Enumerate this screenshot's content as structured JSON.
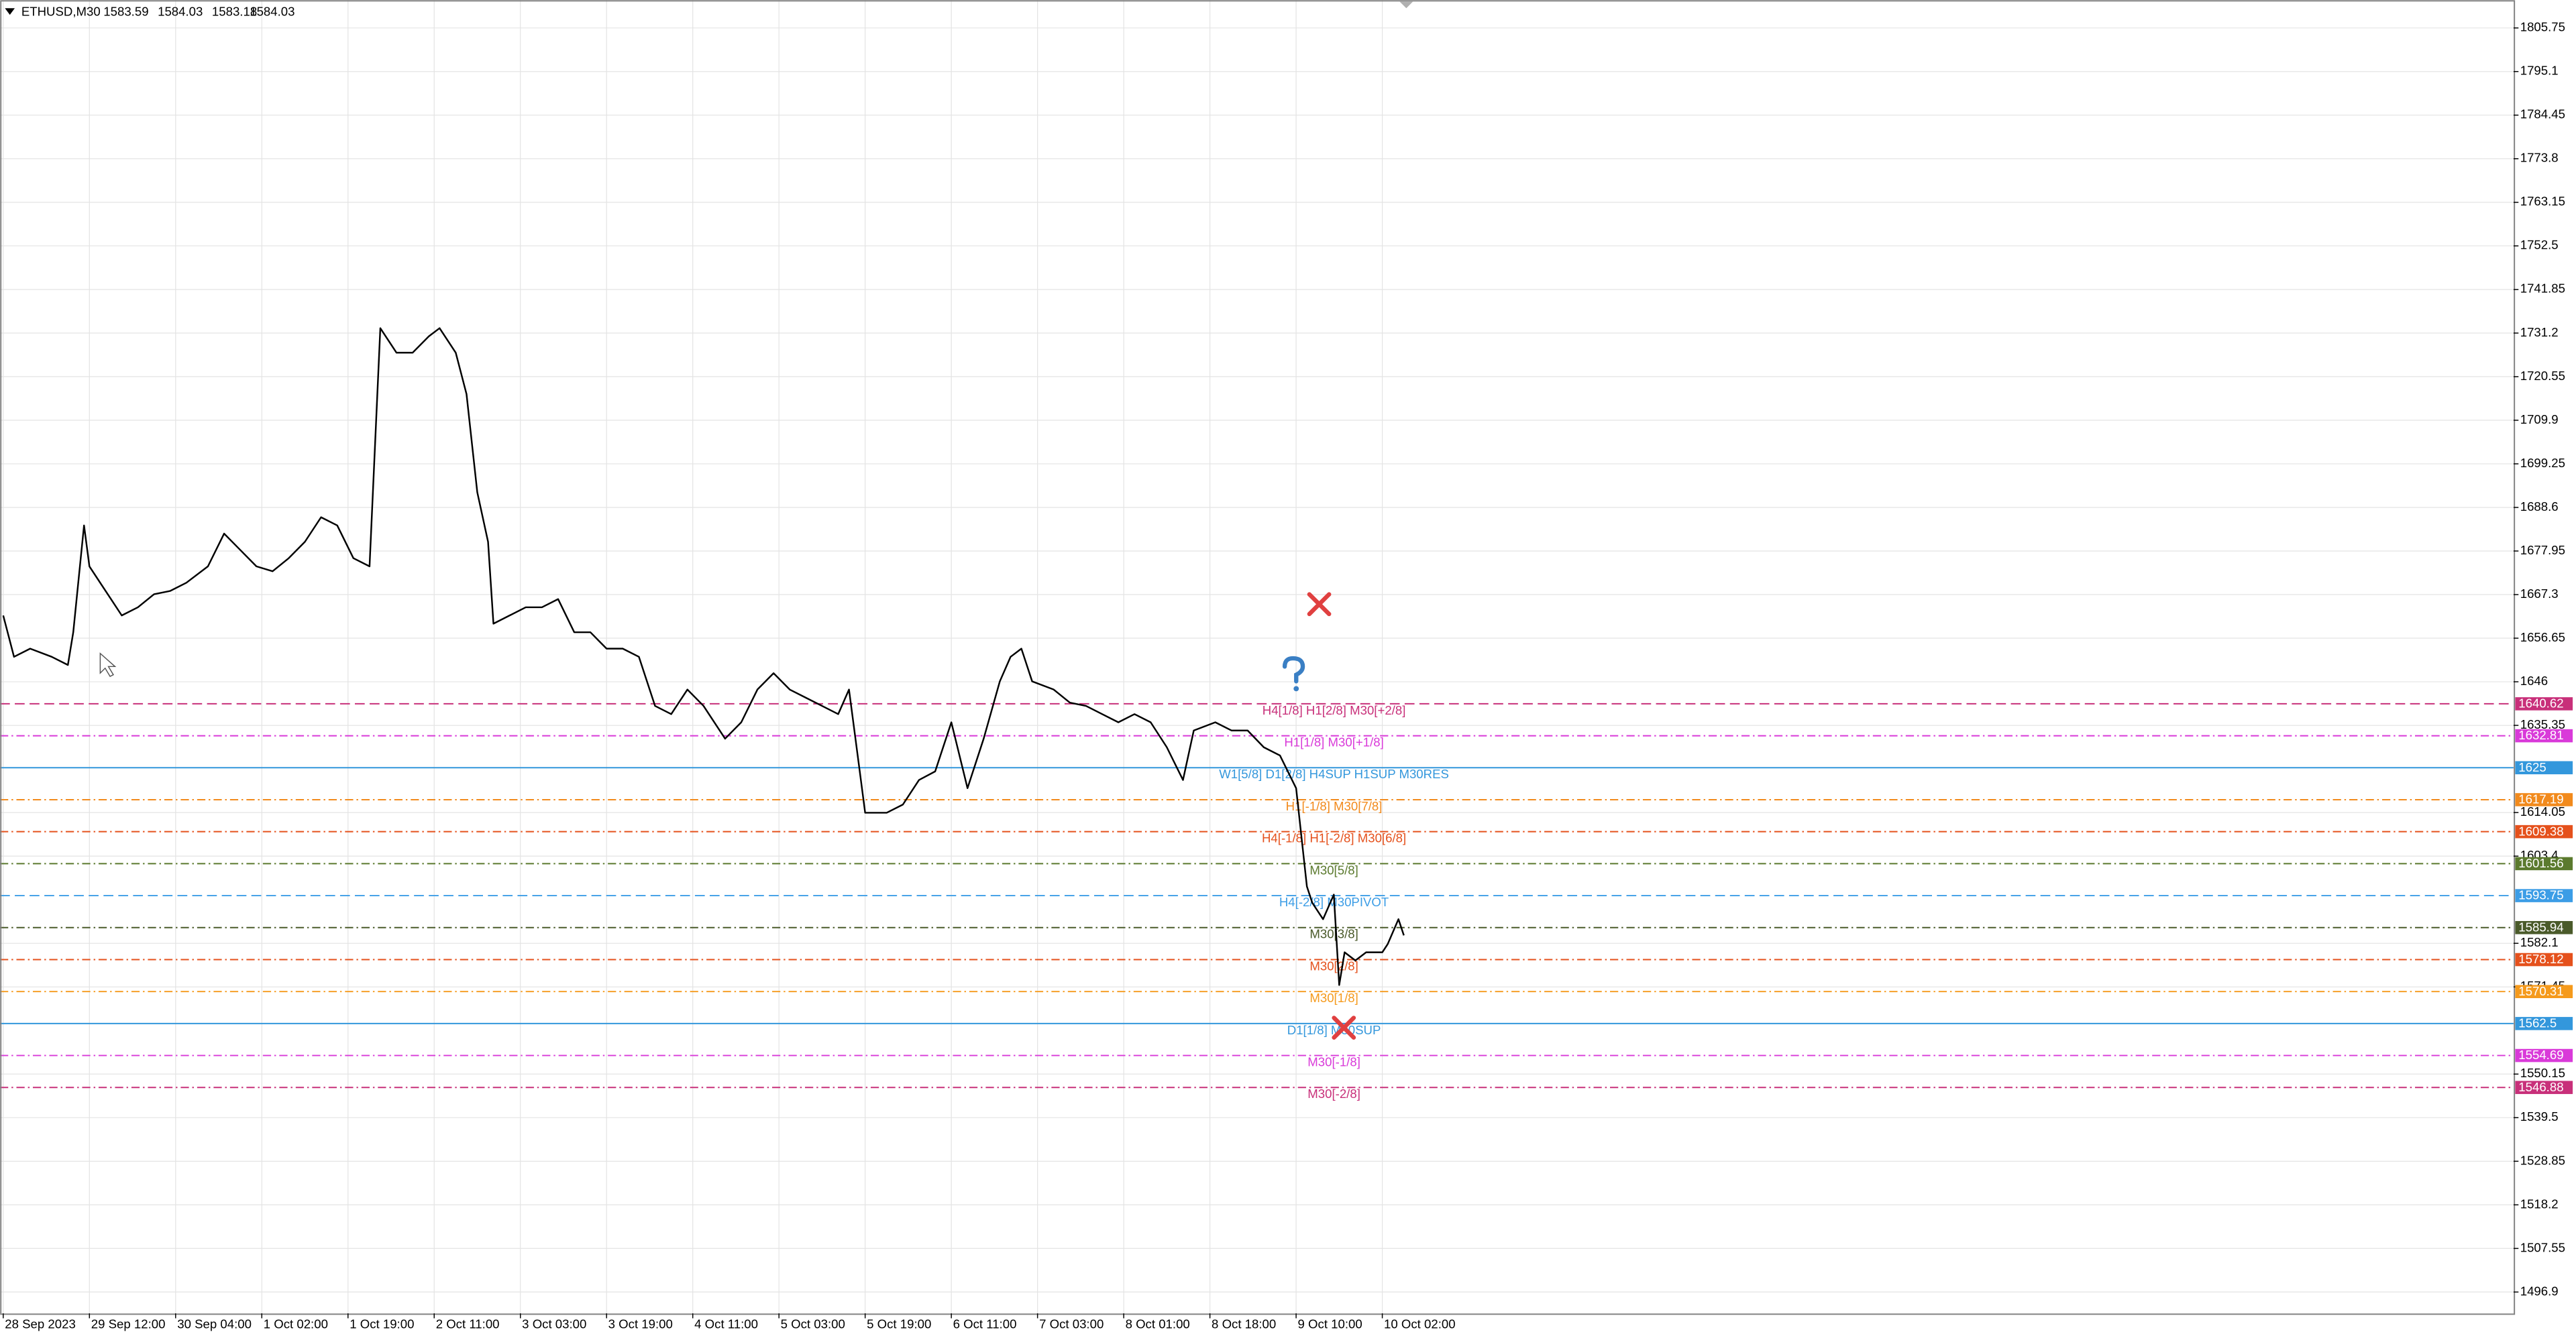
{
  "chart_data": {
    "type": "line",
    "symbol": "ETHUSD,M30",
    "ohlc": [
      1583.59,
      1584.03,
      1583.18,
      1584.03
    ],
    "color": "#000000",
    "grid": true,
    "xlim": [
      -0.6,
      466
    ],
    "ylim": [
      1491.69,
      1812.57
    ],
    "x": [
      0,
      2,
      5,
      9,
      12,
      13,
      15,
      16,
      19,
      22,
      25,
      28,
      31,
      34,
      38,
      41,
      44,
      47,
      50,
      53,
      56,
      59,
      62,
      65,
      68,
      70,
      73,
      76,
      79,
      81,
      84,
      86,
      88,
      90,
      91,
      94,
      97,
      100,
      103,
      106,
      109,
      112,
      115,
      118,
      121,
      124,
      127,
      130,
      134,
      137,
      140,
      143,
      146,
      149,
      152,
      155,
      157,
      159,
      160,
      164,
      167,
      170,
      173,
      176,
      179,
      182,
      185,
      187,
      189,
      191,
      195,
      198,
      201,
      204,
      207,
      210,
      213,
      216,
      219,
      221,
      225,
      228,
      231,
      234,
      237,
      240,
      242,
      243,
      245,
      247,
      248,
      249,
      251,
      253,
      256,
      257,
      259,
      260
    ],
    "values": [
      1662.2,
      1652.1,
      1654.1,
      1652.1,
      1650.1,
      1658.1,
      1684.2,
      1674.2,
      1668.2,
      1662.2,
      1664.2,
      1667.4,
      1668.2,
      1670.2,
      1674.2,
      1682.2,
      1678.2,
      1674.2,
      1673.0,
      1676.2,
      1680.2,
      1686.2,
      1684.2,
      1676.2,
      1674.2,
      1732.4,
      1726.4,
      1726.4,
      1730.4,
      1732.4,
      1726.4,
      1716.3,
      1692.3,
      1680.2,
      1660.2,
      1662.2,
      1664.2,
      1664.2,
      1666.2,
      1658.1,
      1658.1,
      1654.1,
      1654.1,
      1652.1,
      1640.1,
      1638.1,
      1644.1,
      1640.1,
      1632.1,
      1636.1,
      1644.1,
      1648.1,
      1644.1,
      1642.1,
      1640.1,
      1638.1,
      1644.1,
      1624.1,
      1614.0,
      1614.0,
      1616.0,
      1622.0,
      1624.1,
      1636.1,
      1620.0,
      1632.1,
      1646.1,
      1652.1,
      1654.1,
      1646.1,
      1644.1,
      1640.9,
      1640.1,
      1638.1,
      1636.1,
      1638.1,
      1636.1,
      1630.0,
      1622.0,
      1634.1,
      1636.1,
      1634.1,
      1634.1,
      1630.0,
      1628.0,
      1620.0,
      1596.0,
      1592.0,
      1588.0,
      1594.0,
      1571.9,
      1579.9,
      1577.9,
      1579.9,
      1579.9,
      1581.9,
      1588.0,
      1584.03
    ],
    "xticks": [
      {
        "value": 0,
        "label": "28 Sep 2023"
      },
      {
        "value": 16,
        "label": "29 Sep 12:00"
      },
      {
        "value": 32,
        "label": "30 Sep 04:00"
      },
      {
        "value": 48,
        "label": "1 Oct 02:00"
      },
      {
        "value": 64,
        "label": "1 Oct 19:00"
      },
      {
        "value": 80,
        "label": "2 Oct 11:00"
      },
      {
        "value": 96,
        "label": "3 Oct 03:00"
      },
      {
        "value": 112,
        "label": "3 Oct 19:00"
      },
      {
        "value": 128,
        "label": "4 Oct 11:00"
      },
      {
        "value": 144,
        "label": "5 Oct 03:00"
      },
      {
        "value": 160,
        "label": "5 Oct 19:00"
      },
      {
        "value": 176,
        "label": "6 Oct 11:00"
      },
      {
        "value": 192,
        "label": "7 Oct 03:00"
      },
      {
        "value": 208,
        "label": "8 Oct 01:00"
      },
      {
        "value": 224,
        "label": "8 Oct 18:00"
      },
      {
        "value": 240,
        "label": "9 Oct 10:00"
      },
      {
        "value": 256,
        "label": "10 Oct 02:00"
      }
    ],
    "yticks": [
      1805.75,
      1795.1,
      1784.45,
      1773.8,
      1763.15,
      1752.5,
      1741.85,
      1731.2,
      1720.55,
      1709.9,
      1699.25,
      1688.6,
      1677.95,
      1667.3,
      1656.65,
      1646.0,
      1635.35,
      1614.05,
      1603.4,
      1582.1,
      1571.45,
      1550.15,
      1539.5,
      1528.85,
      1518.2,
      1507.55,
      1496.9
    ],
    "levels": [
      {
        "value": 1640.62,
        "label": "H4[1/8] H1[2/8] M30[+2/8]",
        "color": "#c8307a",
        "style": "dashed"
      },
      {
        "value": 1632.81,
        "label": "H1[1/8] M30[+1/8]",
        "color": "#d93ad9",
        "style": "dashdot"
      },
      {
        "value": 1625.0,
        "label": "W1[5/8] D1[2/8] H4SUP H1SUP M30RES",
        "color": "#3397dc",
        "style": "solid"
      },
      {
        "value": 1617.19,
        "label": "H1[-1/8] M30[7/8]",
        "color": "#f28a1c",
        "style": "dashdot"
      },
      {
        "value": 1609.38,
        "label": "H4[-1/8] H1[-2/8] M30[6/8]",
        "color": "#e5511c",
        "style": "dashdot"
      },
      {
        "value": 1601.56,
        "label": "M30[5/8]",
        "color": "#5b7a2e",
        "style": "dashdot"
      },
      {
        "value": 1593.75,
        "label": "H4[-2/8] M30PIVOT",
        "color": "#3c9de6",
        "style": "dashed"
      },
      {
        "value": 1585.94,
        "label": "M30[3/8]",
        "color": "#4a5a2a",
        "style": "dashdot"
      },
      {
        "value": 1578.12,
        "label": "M30[2/8]",
        "color": "#e5511c",
        "style": "dashdot"
      },
      {
        "value": 1570.31,
        "label": "M30[1/8]",
        "color": "#f59a1c",
        "style": "dashdot"
      },
      {
        "value": 1562.5,
        "label": "D1[1/8] M30SUP",
        "color": "#3397dc",
        "style": "solid"
      },
      {
        "value": 1554.69,
        "label": "M30[-1/8]",
        "color": "#d93ad9",
        "style": "dashdot"
      },
      {
        "value": 1546.88,
        "label": "M30[-2/8]",
        "color": "#c8307a",
        "style": "dashdot"
      }
    ]
  }
}
